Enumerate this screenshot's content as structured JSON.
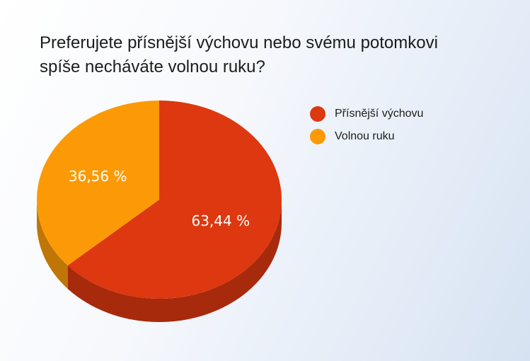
{
  "chart_data": {
    "type": "pie",
    "title": "Preferujete přísnější výchovu nebo svému potomkovi\nspíše necháváte volnou ruku?",
    "slices": [
      {
        "label": "Přísnější výchovu",
        "value": 63.44,
        "display": "63,44 %",
        "color": "#dd3810",
        "side_color": "#a82a0c"
      },
      {
        "label": "Volnou ruku",
        "value": 36.56,
        "display": "36,56 %",
        "color": "#fb9a06",
        "side_color": "#c07507"
      }
    ],
    "legend_position": "right",
    "style": "3d"
  }
}
